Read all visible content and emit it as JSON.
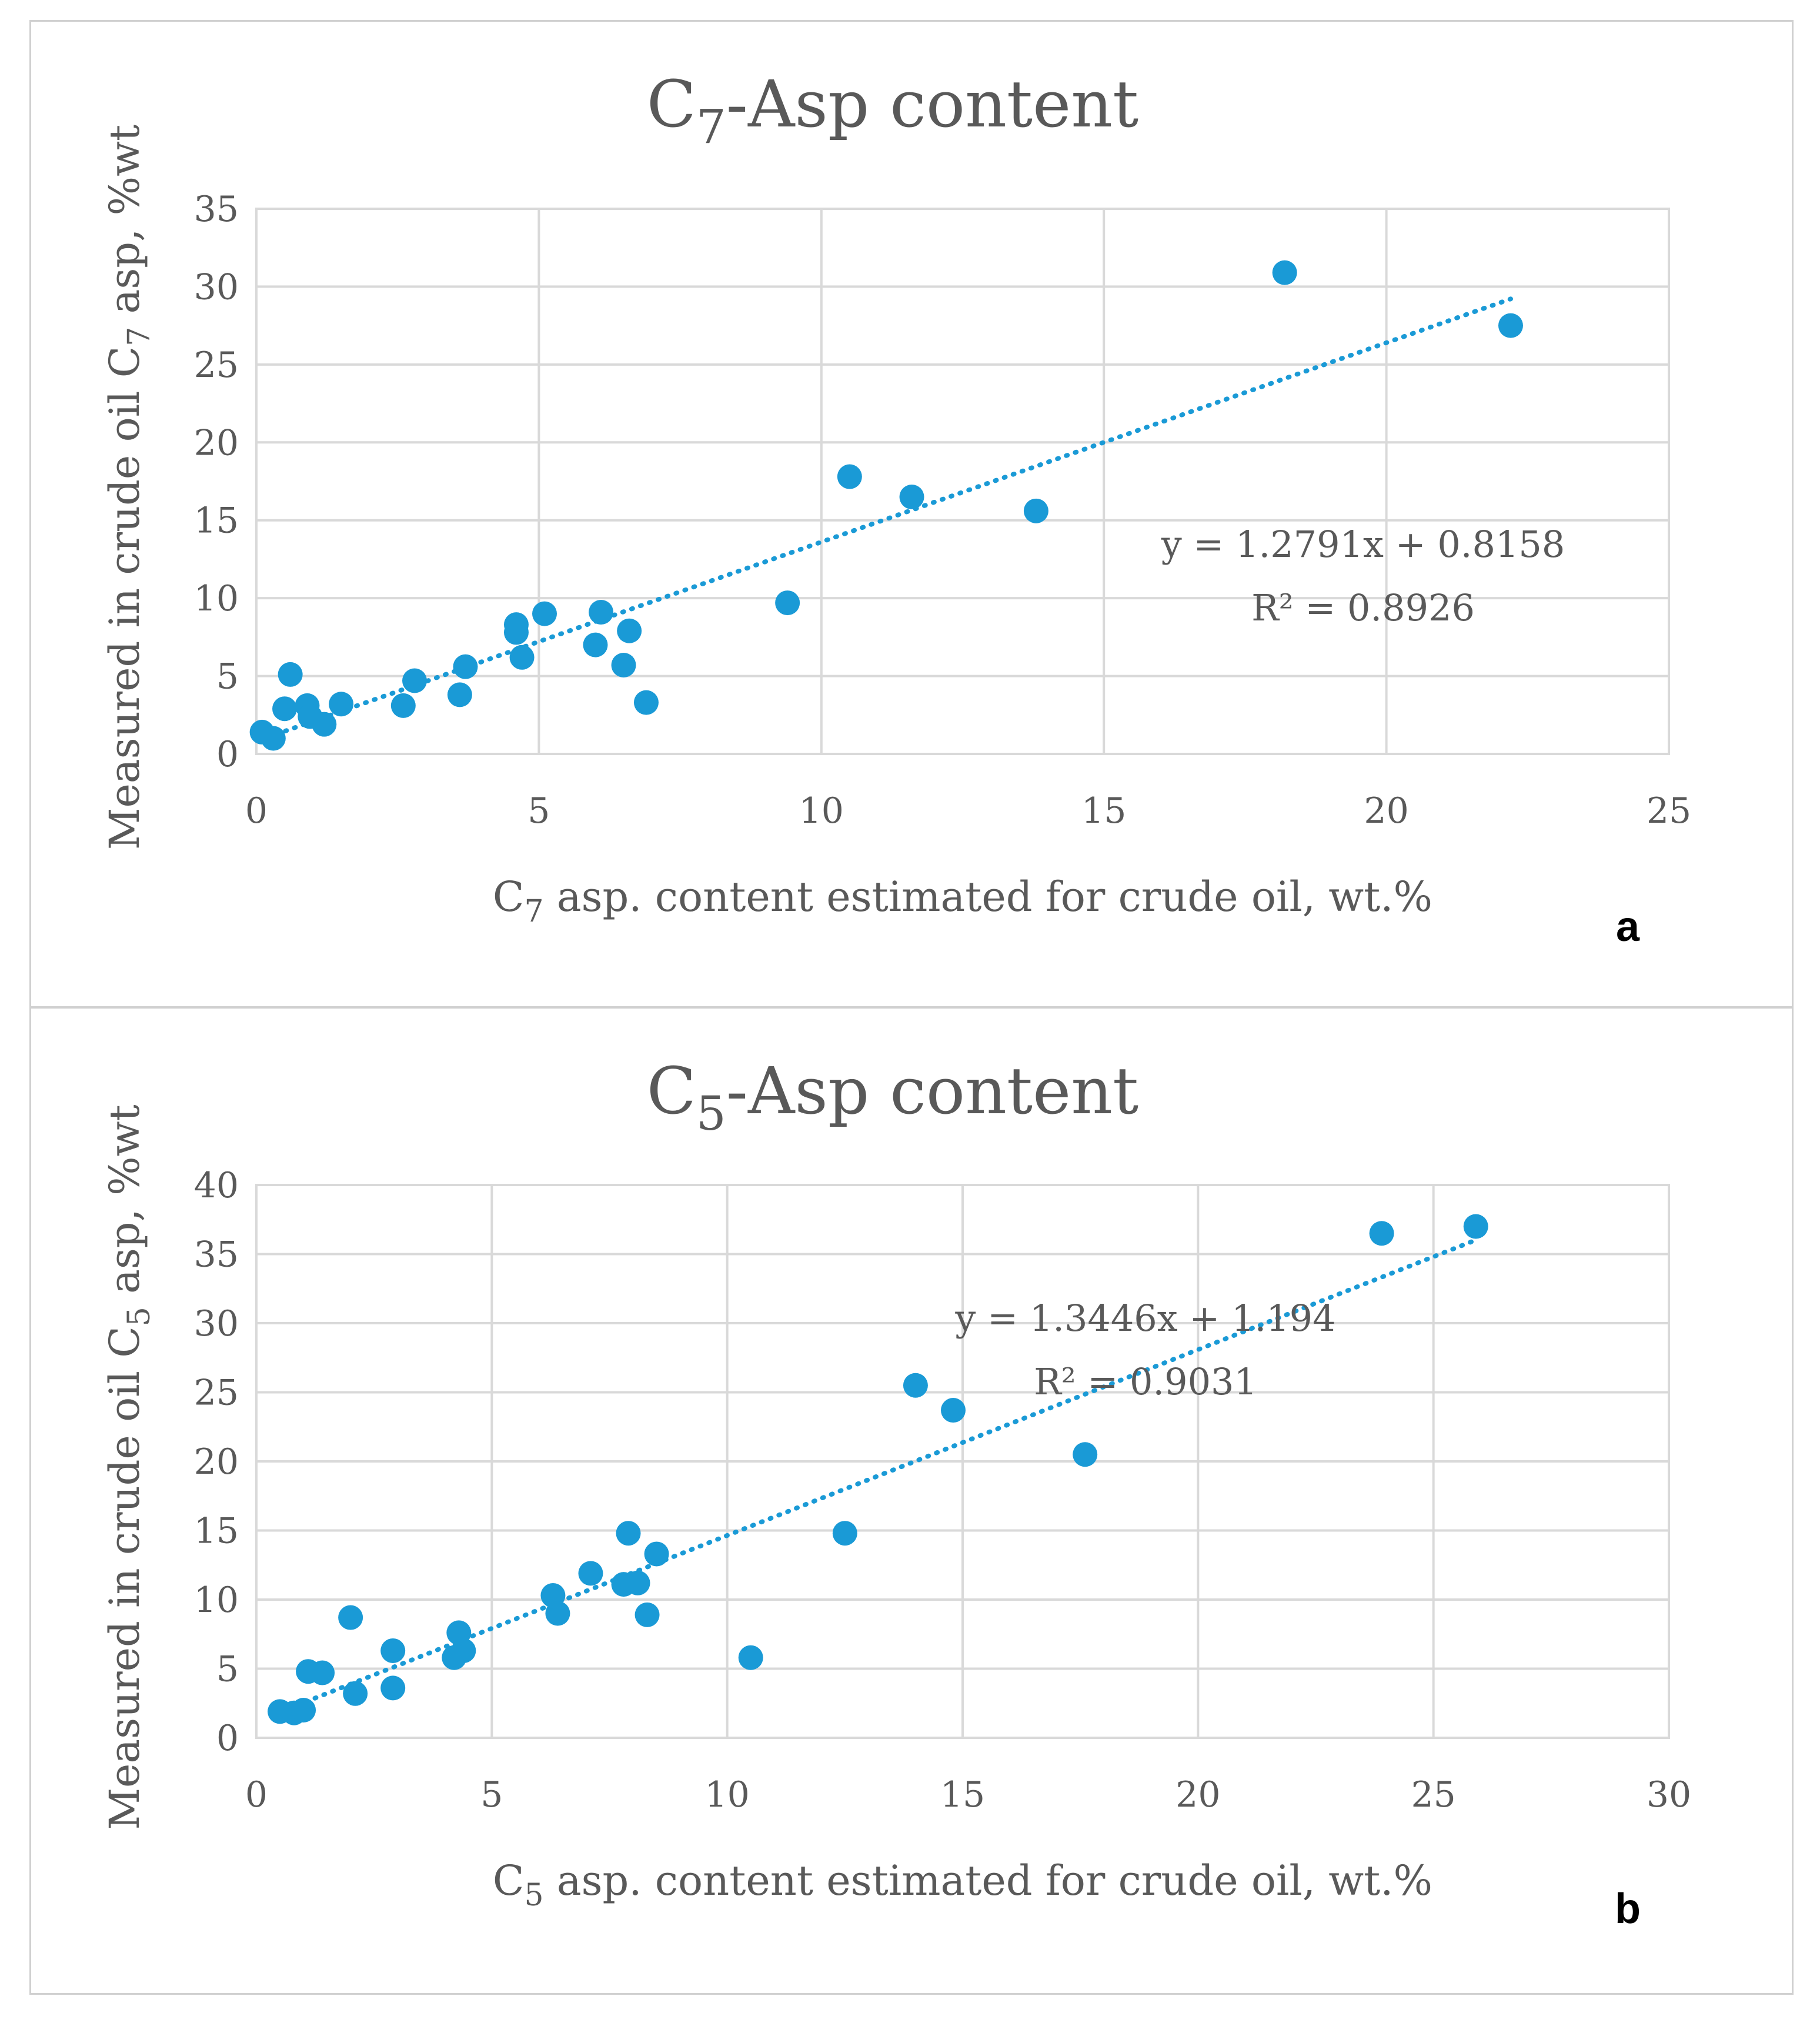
{
  "chart_data": [
    {
      "type": "scatter",
      "panel_label": "a",
      "title": {
        "main": "C",
        "sub": "7",
        "rest": "-Asp content"
      },
      "xlabel": {
        "main": "C",
        "sub": "7",
        "rest": " asp. content estimated for crude oil, wt.%"
      },
      "ylabel": {
        "main": "Measured in crude oil C",
        "sub": "7",
        "rest": " asp, %wt"
      },
      "xlim": [
        0,
        25
      ],
      "ylim": [
        0,
        35
      ],
      "xticks": [
        0,
        5,
        10,
        15,
        20,
        25
      ],
      "yticks": [
        0,
        5,
        10,
        15,
        20,
        25,
        30,
        35
      ],
      "grid": true,
      "trendline": {
        "slope": 1.2791,
        "intercept": 0.8158,
        "x_range": [
          0.2,
          22.2
        ],
        "equation": "y = 1.2791x + 0.8158",
        "r2": "R² = 0.8926"
      },
      "series": [
        {
          "name": "C7-Asp",
          "color": "#1a9ad6",
          "points": [
            [
              0.1,
              1.4
            ],
            [
              0.3,
              1.0
            ],
            [
              0.5,
              2.9
            ],
            [
              0.6,
              5.1
            ],
            [
              0.9,
              3.1
            ],
            [
              0.95,
              2.4
            ],
            [
              1.2,
              1.9
            ],
            [
              1.5,
              3.2
            ],
            [
              2.6,
              3.1
            ],
            [
              2.8,
              4.7
            ],
            [
              3.6,
              3.8
            ],
            [
              3.7,
              5.6
            ],
            [
              4.6,
              8.3
            ],
            [
              4.6,
              7.8
            ],
            [
              4.7,
              6.2
            ],
            [
              5.1,
              9.0
            ],
            [
              6.0,
              7.0
            ],
            [
              6.1,
              9.1
            ],
            [
              6.5,
              5.7
            ],
            [
              6.6,
              7.9
            ],
            [
              6.9,
              3.3
            ],
            [
              9.4,
              9.7
            ],
            [
              10.5,
              17.8
            ],
            [
              11.6,
              16.5
            ],
            [
              13.8,
              15.6
            ],
            [
              18.2,
              30.9
            ],
            [
              22.2,
              27.5
            ]
          ]
        }
      ]
    },
    {
      "type": "scatter",
      "panel_label": "b",
      "title": {
        "main": "C",
        "sub": "5",
        "rest": "-Asp content"
      },
      "xlabel": {
        "main": "C",
        "sub": "5",
        "rest": " asp. content estimated for crude oil, wt.%"
      },
      "ylabel": {
        "main": "Measured in crude oil C",
        "sub": "5",
        "rest": " asp, %wt"
      },
      "xlim": [
        0,
        30
      ],
      "ylim": [
        0,
        40
      ],
      "xticks": [
        0,
        5,
        10,
        15,
        20,
        25,
        30
      ],
      "yticks": [
        0,
        5,
        10,
        15,
        20,
        25,
        30,
        35,
        40
      ],
      "grid": true,
      "trendline": {
        "slope": 1.3446,
        "intercept": 1.194,
        "x_range": [
          0.5,
          25.9
        ],
        "equation": "y = 1.3446x + 1.194",
        "r2": "R² = 0.9031"
      },
      "series": [
        {
          "name": "C5-Asp",
          "color": "#1a9ad6",
          "points": [
            [
              0.5,
              1.9
            ],
            [
              0.8,
              1.8
            ],
            [
              1.0,
              2.0
            ],
            [
              1.1,
              4.8
            ],
            [
              1.4,
              4.7
            ],
            [
              2.0,
              8.7
            ],
            [
              2.1,
              3.2
            ],
            [
              2.9,
              6.3
            ],
            [
              2.9,
              3.6
            ],
            [
              4.2,
              5.8
            ],
            [
              4.3,
              7.6
            ],
            [
              4.4,
              6.3
            ],
            [
              6.3,
              10.3
            ],
            [
              6.4,
              9.0
            ],
            [
              7.1,
              11.9
            ],
            [
              7.8,
              11.1
            ],
            [
              7.9,
              14.8
            ],
            [
              8.1,
              11.2
            ],
            [
              8.3,
              8.9
            ],
            [
              8.5,
              13.3
            ],
            [
              10.5,
              5.8
            ],
            [
              12.5,
              14.8
            ],
            [
              14.0,
              25.5
            ],
            [
              14.8,
              23.7
            ],
            [
              17.6,
              20.5
            ],
            [
              23.9,
              36.5
            ],
            [
              25.9,
              37.0
            ]
          ]
        }
      ]
    }
  ]
}
